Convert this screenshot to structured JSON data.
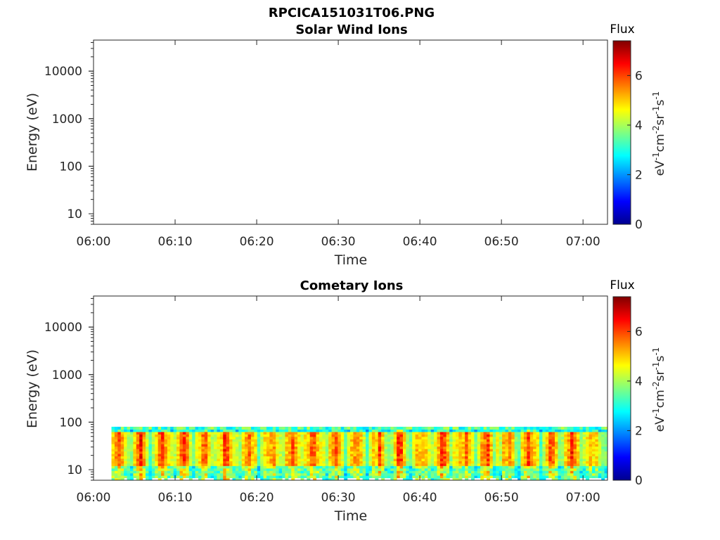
{
  "figure_title": "RPCICA151031T06.PNG",
  "colors": {
    "colormap": [
      "#00008f",
      "#0000ff",
      "#0080ff",
      "#00ffff",
      "#80ff80",
      "#ffff00",
      "#ff8000",
      "#ff0000",
      "#800000"
    ],
    "axis": "#262626"
  },
  "chart_data": [
    {
      "type": "heatmap",
      "title": "Solar Wind Ions",
      "xlabel": "Time",
      "ylabel": "Energy (eV)",
      "x_ticks": [
        "06:00",
        "06:10",
        "06:20",
        "06:30",
        "06:40",
        "06:50",
        "07:00"
      ],
      "y_ticks": [
        "10",
        "100",
        "1000",
        "10000"
      ],
      "y_scale": "log",
      "y_range": [
        6,
        45000
      ],
      "x_range_minutes": [
        0,
        63
      ],
      "colorbar": {
        "title": "Flux",
        "label": "eV-1cm-2sr-1s-1",
        "ticks": [
          "0",
          "2",
          "4",
          "6"
        ],
        "range": [
          0,
          7.4
        ]
      },
      "data_summary": "no significant flux",
      "grid": false
    },
    {
      "type": "heatmap",
      "title": "Cometary Ions",
      "xlabel": "Time",
      "ylabel": "Energy (eV)",
      "x_ticks": [
        "06:00",
        "06:10",
        "06:20",
        "06:30",
        "06:40",
        "06:50",
        "07:00"
      ],
      "y_ticks": [
        "10",
        "100",
        "1000",
        "10000"
      ],
      "y_scale": "log",
      "y_range": [
        6,
        45000
      ],
      "x_range_minutes": [
        0,
        63
      ],
      "colorbar": {
        "title": "Flux",
        "label": "eV-1cm-2sr-1s-1",
        "ticks": [
          "0",
          "2",
          "4",
          "6"
        ],
        "range": [
          0,
          7.4
        ]
      },
      "data_start_minute": 2.2,
      "data_end_minute": 63,
      "energy_band_eV": [
        6,
        80
      ],
      "peak_band_eV": [
        12,
        60
      ],
      "peak_flux": 7,
      "grid": false
    }
  ]
}
